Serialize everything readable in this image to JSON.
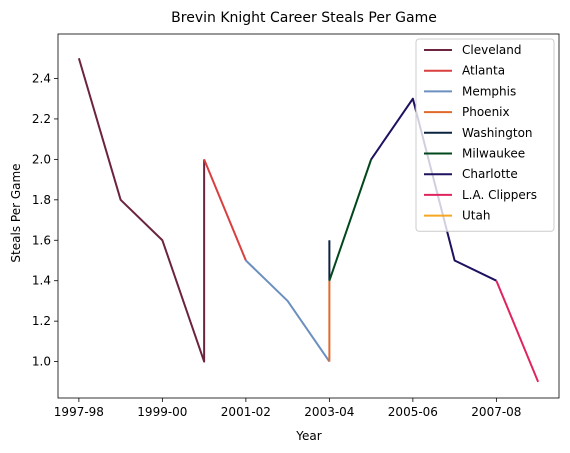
{
  "chart_data": {
    "type": "line",
    "title": "Brevin Knight Career Steals Per Game",
    "xlabel": "Year",
    "ylabel": "Steals Per Game",
    "x_tick_labels": [
      "1997-98",
      "1999-00",
      "2001-02",
      "2003-04",
      "2005-06",
      "2007-08"
    ],
    "x_tick_positions": [
      0,
      2,
      4,
      6,
      8,
      10
    ],
    "xlim": [
      -0.5,
      11.5
    ],
    "ylim": [
      0.82,
      2.62
    ],
    "y_ticks": [
      1.0,
      1.2,
      1.4,
      1.6,
      1.8,
      2.0,
      2.2,
      2.4
    ],
    "legend_position": "top-right",
    "grid": false,
    "series": [
      {
        "name": "Cleveland",
        "color": "#6b2340",
        "points": [
          [
            0,
            2.5
          ],
          [
            1,
            1.8
          ],
          [
            2,
            1.6
          ],
          [
            3,
            1.0
          ],
          [
            3,
            2.0
          ]
        ]
      },
      {
        "name": "Atlanta",
        "color": "#d93f3f",
        "points": [
          [
            3,
            2.0
          ],
          [
            4,
            1.5
          ]
        ]
      },
      {
        "name": "Memphis",
        "color": "#6b8fbf",
        "points": [
          [
            4,
            1.5
          ],
          [
            5,
            1.3
          ],
          [
            6,
            1.0
          ]
        ]
      },
      {
        "name": "Phoenix",
        "color": "#e06a2c",
        "points": [
          [
            6,
            1.0
          ],
          [
            6,
            1.4
          ]
        ]
      },
      {
        "name": "Washington",
        "color": "#0c2340",
        "points": [
          [
            6,
            1.6
          ],
          [
            6,
            1.4
          ]
        ]
      },
      {
        "name": "Milwaukee",
        "color": "#00471b",
        "points": [
          [
            6,
            1.4
          ],
          [
            7,
            2.0
          ]
        ]
      },
      {
        "name": "Charlotte",
        "color": "#1d1160",
        "points": [
          [
            7,
            2.0
          ],
          [
            8,
            2.3
          ],
          [
            9,
            1.5
          ],
          [
            10,
            1.4
          ]
        ]
      },
      {
        "name": "L.A. Clippers",
        "color": "#e0245e",
        "points": [
          [
            10,
            1.4
          ],
          [
            11,
            0.9
          ]
        ]
      },
      {
        "name": "Utah",
        "color": "#f5a623",
        "points": []
      }
    ]
  }
}
